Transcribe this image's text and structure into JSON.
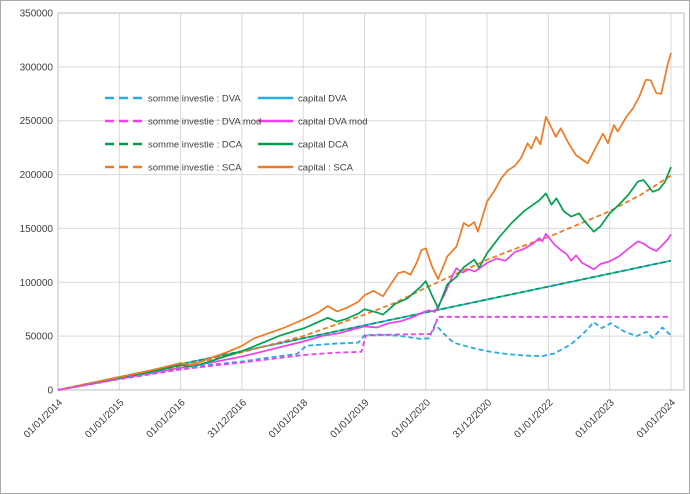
{
  "figure": {
    "background": "#ffffff",
    "border_color": "#a9a9a9",
    "grid_color": "#d9d9d9",
    "plot_border_color": "#bfbfbf",
    "text_color": "#3f3f3f"
  },
  "chart_data": {
    "type": "line",
    "title": "",
    "xlabel": "",
    "ylabel": "",
    "grid": true,
    "legend_position": "upper-left-inside",
    "ylim": [
      0,
      350000
    ],
    "y_ticks": [
      0,
      50000,
      100000,
      150000,
      200000,
      250000,
      300000,
      350000
    ],
    "y_tick_labels": [
      "0",
      "50000",
      "100000",
      "150000",
      "200000",
      "250000",
      "300000",
      "350000"
    ],
    "x_tick_labels": [
      "01/01/2014",
      "01/01/2015",
      "01/01/2016",
      "31/12/2016",
      "01/01/2018",
      "01/01/2019",
      "01/01/2020",
      "31/12/2020",
      "01/01/2022",
      "01/01/2023",
      "01/01/2024"
    ],
    "x_unit": "years offset from 01/01/2014, one tick per year",
    "series": [
      {
        "name": "capital-dva",
        "label": "capital DVA",
        "color": "#29ABE2",
        "style": "solid",
        "legend_column": 2,
        "legend_row": 1,
        "points": [
          [
            0,
            0
          ],
          [
            10,
            120000
          ]
        ]
      },
      {
        "name": "somme-investie-dca",
        "label": "somme investie : DCA",
        "color": "#00A14E",
        "style": "dashed",
        "legend_column": 1,
        "legend_row": 3,
        "points": [
          [
            0,
            0
          ],
          [
            10,
            120000
          ]
        ]
      },
      {
        "name": "somme-investie-sca",
        "label": "somme investie : SCA",
        "color": "#F07A22",
        "style": "dashed",
        "legend_column": 1,
        "legend_row": 4,
        "points": [
          [
            0,
            0
          ],
          [
            1,
            11000
          ],
          [
            2,
            22000
          ],
          [
            3,
            35000
          ],
          [
            4,
            50000
          ],
          [
            5,
            70000
          ],
          [
            5.5,
            81000
          ],
          [
            6,
            95000
          ],
          [
            6.5,
            108000
          ],
          [
            7,
            121000
          ],
          [
            7.5,
            132000
          ],
          [
            8,
            142000
          ],
          [
            8.5,
            154000
          ],
          [
            9,
            166000
          ],
          [
            9.5,
            181000
          ],
          [
            10,
            199000
          ]
        ]
      },
      {
        "name": "capital-dva-mod",
        "label": "capital DVA mod",
        "color": "#EF3FEF",
        "style": "solid",
        "legend_column": 2,
        "legend_row": 2,
        "points": [
          [
            0,
            0
          ],
          [
            0.5,
            5200
          ],
          [
            1,
            10500
          ],
          [
            1.5,
            15500
          ],
          [
            2,
            20500
          ],
          [
            2.5,
            25500
          ],
          [
            3,
            31000
          ],
          [
            3.5,
            38000
          ],
          [
            4,
            45000
          ],
          [
            4.3,
            50000
          ],
          [
            4.6,
            53000
          ],
          [
            4.8,
            56000
          ],
          [
            5,
            59000
          ],
          [
            5.2,
            58000
          ],
          [
            5.4,
            62000
          ],
          [
            5.6,
            64000
          ],
          [
            5.8,
            68000
          ],
          [
            5.95,
            72000
          ],
          [
            6.05,
            74000
          ],
          [
            6.15,
            72500
          ],
          [
            6.3,
            88000
          ],
          [
            6.45,
            108000
          ],
          [
            6.5,
            113000
          ],
          [
            6.6,
            109000
          ],
          [
            6.7,
            112000
          ],
          [
            6.8,
            110000
          ],
          [
            7,
            118000
          ],
          [
            7.15,
            122000
          ],
          [
            7.3,
            120000
          ],
          [
            7.45,
            128000
          ],
          [
            7.6,
            131000
          ],
          [
            7.75,
            136000
          ],
          [
            7.85,
            141000
          ],
          [
            7.9,
            138000
          ],
          [
            7.96,
            145000
          ],
          [
            8.1,
            135000
          ],
          [
            8.2,
            130000
          ],
          [
            8.3,
            126000
          ],
          [
            8.37,
            120000
          ],
          [
            8.45,
            125000
          ],
          [
            8.55,
            118000
          ],
          [
            8.65,
            115000
          ],
          [
            8.74,
            112000
          ],
          [
            8.85,
            117000
          ],
          [
            9,
            119500
          ],
          [
            9.15,
            124000
          ],
          [
            9.3,
            131000
          ],
          [
            9.46,
            138000
          ],
          [
            9.55,
            136000
          ],
          [
            9.65,
            132000
          ],
          [
            9.76,
            129000
          ],
          [
            9.85,
            134000
          ],
          [
            9.95,
            140000
          ],
          [
            10,
            144500
          ]
        ]
      },
      {
        "name": "capital-dca",
        "label": "capital DCA",
        "color": "#00A14E",
        "style": "solid",
        "legend_column": 2,
        "legend_row": 3,
        "points": [
          [
            0,
            0
          ],
          [
            0.5,
            5500
          ],
          [
            1,
            11000
          ],
          [
            1.5,
            16500
          ],
          [
            2,
            23000
          ],
          [
            2.2,
            21500
          ],
          [
            2.5,
            27000
          ],
          [
            3,
            36000
          ],
          [
            3.3,
            43000
          ],
          [
            3.6,
            50000
          ],
          [
            3.9,
            55500
          ],
          [
            4,
            57000
          ],
          [
            4.2,
            62000
          ],
          [
            4.4,
            67000
          ],
          [
            4.55,
            63500
          ],
          [
            4.7,
            66000
          ],
          [
            4.9,
            71000
          ],
          [
            5,
            75000
          ],
          [
            5.2,
            72000
          ],
          [
            5.3,
            70000
          ],
          [
            5.5,
            80000
          ],
          [
            5.7,
            85000
          ],
          [
            5.9,
            95000
          ],
          [
            6,
            101000
          ],
          [
            6.1,
            88000
          ],
          [
            6.2,
            76000
          ],
          [
            6.35,
            98000
          ],
          [
            6.5,
            105000
          ],
          [
            6.62,
            114000
          ],
          [
            6.79,
            121000
          ],
          [
            6.87,
            113500
          ],
          [
            7,
            127000
          ],
          [
            7.2,
            142000
          ],
          [
            7.4,
            155000
          ],
          [
            7.6,
            166000
          ],
          [
            7.75,
            172000
          ],
          [
            7.85,
            176000
          ],
          [
            7.96,
            182500
          ],
          [
            8.05,
            172000
          ],
          [
            8.13,
            178000
          ],
          [
            8.25,
            166000
          ],
          [
            8.37,
            161000
          ],
          [
            8.5,
            164000
          ],
          [
            8.6,
            156000
          ],
          [
            8.74,
            147000
          ],
          [
            8.85,
            152000
          ],
          [
            9,
            164000
          ],
          [
            9.15,
            172000
          ],
          [
            9.3,
            181000
          ],
          [
            9.46,
            193500
          ],
          [
            9.55,
            195000
          ],
          [
            9.62,
            190000
          ],
          [
            9.7,
            184000
          ],
          [
            9.8,
            186000
          ],
          [
            9.9,
            193000
          ],
          [
            10,
            207000
          ]
        ]
      },
      {
        "name": "capital-sca",
        "label": "capital : SCA",
        "color": "#F07A22",
        "style": "solid",
        "legend_column": 2,
        "legend_row": 4,
        "points": [
          [
            0,
            0
          ],
          [
            0.5,
            6000
          ],
          [
            1,
            12000
          ],
          [
            1.5,
            18000
          ],
          [
            2,
            25000
          ],
          [
            2.2,
            23500
          ],
          [
            2.5,
            30000
          ],
          [
            2.75,
            35000
          ],
          [
            3,
            41000
          ],
          [
            3.2,
            48000
          ],
          [
            3.5,
            54000
          ],
          [
            3.7,
            58000
          ],
          [
            3.9,
            63000
          ],
          [
            4.1,
            68000
          ],
          [
            4.25,
            72000
          ],
          [
            4.4,
            78000
          ],
          [
            4.55,
            73000
          ],
          [
            4.7,
            76000
          ],
          [
            4.9,
            82000
          ],
          [
            5,
            88000
          ],
          [
            5.15,
            92000
          ],
          [
            5.3,
            87000
          ],
          [
            5.45,
            100000
          ],
          [
            5.55,
            108500
          ],
          [
            5.65,
            110000
          ],
          [
            5.75,
            107000
          ],
          [
            5.85,
            118000
          ],
          [
            5.93,
            130000
          ],
          [
            6,
            131500
          ],
          [
            6.1,
            115000
          ],
          [
            6.2,
            103000
          ],
          [
            6.35,
            124000
          ],
          [
            6.5,
            133000
          ],
          [
            6.62,
            155000
          ],
          [
            6.7,
            152000
          ],
          [
            6.79,
            156000
          ],
          [
            6.85,
            147000
          ],
          [
            7,
            175000
          ],
          [
            7.12,
            185000
          ],
          [
            7.23,
            196500
          ],
          [
            7.34,
            204000
          ],
          [
            7.45,
            208000
          ],
          [
            7.55,
            215000
          ],
          [
            7.66,
            229000
          ],
          [
            7.72,
            224000
          ],
          [
            7.8,
            235000
          ],
          [
            7.87,
            228000
          ],
          [
            7.96,
            253500
          ],
          [
            8.04,
            244500
          ],
          [
            8.12,
            235000
          ],
          [
            8.2,
            243000
          ],
          [
            8.33,
            229000
          ],
          [
            8.45,
            218000
          ],
          [
            8.55,
            214000
          ],
          [
            8.64,
            210500
          ],
          [
            8.78,
            226000
          ],
          [
            8.89,
            238000
          ],
          [
            8.97,
            229000
          ],
          [
            9.07,
            246000
          ],
          [
            9.13,
            240000
          ],
          [
            9.27,
            253500
          ],
          [
            9.38,
            261500
          ],
          [
            9.48,
            272000
          ],
          [
            9.59,
            288000
          ],
          [
            9.67,
            287500
          ],
          [
            9.76,
            275500
          ],
          [
            9.84,
            275000
          ],
          [
            9.95,
            303000
          ],
          [
            10,
            313000
          ]
        ]
      },
      {
        "name": "somme-investie-dva",
        "label": "somme investie : DVA",
        "color": "#29ABE2",
        "style": "dashed",
        "legend_column": 1,
        "legend_row": 1,
        "points": [
          [
            0,
            0
          ],
          [
            0.5,
            5200
          ],
          [
            1,
            10300
          ],
          [
            1.5,
            15000
          ],
          [
            2,
            19500
          ],
          [
            2.5,
            23500
          ],
          [
            3,
            26500
          ],
          [
            3.5,
            30500
          ],
          [
            3.9,
            33500
          ],
          [
            4.05,
            41000
          ],
          [
            4.5,
            43000
          ],
          [
            4.9,
            44000
          ],
          [
            5,
            51000
          ],
          [
            5.3,
            51500
          ],
          [
            5.6,
            50000
          ],
          [
            5.9,
            47500
          ],
          [
            6.05,
            48000
          ],
          [
            6.15,
            61000
          ],
          [
            6.3,
            52000
          ],
          [
            6.45,
            44000
          ],
          [
            6.6,
            41500
          ],
          [
            6.8,
            38500
          ],
          [
            7,
            36000
          ],
          [
            7.3,
            33500
          ],
          [
            7.6,
            32000
          ],
          [
            7.9,
            31500
          ],
          [
            8.1,
            34000
          ],
          [
            8.37,
            42500
          ],
          [
            8.58,
            53000
          ],
          [
            8.74,
            63000
          ],
          [
            8.87,
            57500
          ],
          [
            9.02,
            62000
          ],
          [
            9.23,
            54500
          ],
          [
            9.44,
            50000
          ],
          [
            9.6,
            54000
          ],
          [
            9.7,
            48500
          ],
          [
            9.86,
            58000
          ],
          [
            10,
            50500
          ]
        ]
      },
      {
        "name": "somme-investie-dva-mod",
        "label": "somme investie : DVA mod",
        "color": "#EF3FEF",
        "style": "dashed",
        "legend_column": 1,
        "legend_row": 2,
        "points": [
          [
            0,
            0
          ],
          [
            0.5,
            5000
          ],
          [
            1,
            10000
          ],
          [
            1.5,
            14500
          ],
          [
            2,
            19000
          ],
          [
            2.5,
            22500
          ],
          [
            3,
            25500
          ],
          [
            3.5,
            29000
          ],
          [
            4,
            32500
          ],
          [
            4.5,
            34500
          ],
          [
            4.95,
            35500
          ],
          [
            5.02,
            50500
          ],
          [
            5.5,
            51500
          ],
          [
            6.1,
            52000
          ],
          [
            6.2,
            68000
          ],
          [
            7,
            68000
          ],
          [
            8,
            68000
          ],
          [
            9,
            68000
          ],
          [
            10,
            68000
          ]
        ]
      }
    ]
  }
}
